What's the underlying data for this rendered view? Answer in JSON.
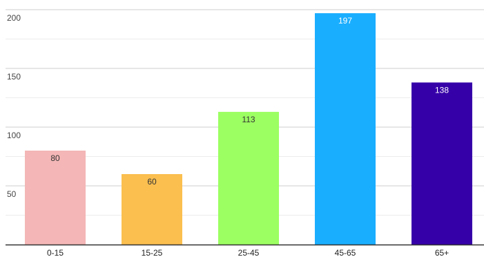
{
  "chart_data": {
    "type": "bar",
    "title": "",
    "xlabel": "",
    "ylabel": "",
    "categories": [
      "0-15",
      "15-25",
      "25-45",
      "45-65",
      "65+"
    ],
    "values": [
      80,
      60,
      113,
      197,
      138
    ],
    "colors": [
      "#f4b6b6",
      "#fbbf4f",
      "#9cff62",
      "#1aaeff",
      "#3600a9"
    ],
    "label_colors": [
      "#333333",
      "#333333",
      "#333333",
      "#ffffff",
      "#ffffff"
    ],
    "yticks": [
      50,
      100,
      150,
      200
    ],
    "ylim": [
      0,
      200
    ],
    "grid": true,
    "legend": "none"
  }
}
